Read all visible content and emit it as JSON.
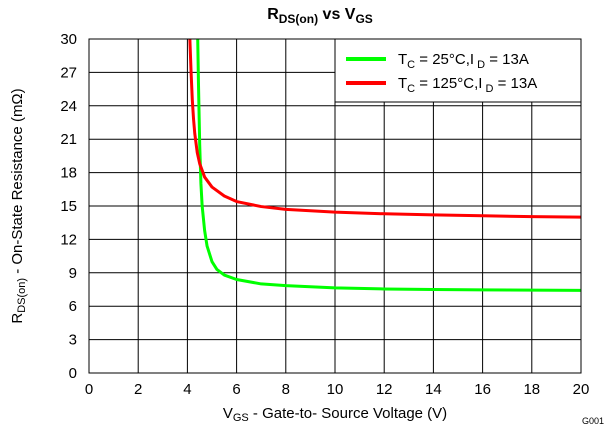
{
  "chart_data": {
    "type": "line",
    "title": {
      "main": "R",
      "main_sub": "DS(on)",
      "middle": " vs V",
      "middle_sub": "GS"
    },
    "xlabel": {
      "prefix": "V",
      "prefix_sub": "GS",
      "text": " - Gate-to- Source Voltage (V)"
    },
    "ylabel": {
      "prefix": "R",
      "prefix_sub": "DS(on)",
      "text": " - On-State Resistance  (mΩ)"
    },
    "xlim": [
      0,
      20
    ],
    "ylim": [
      0,
      30
    ],
    "x_ticks": [
      0,
      2,
      4,
      6,
      8,
      10,
      12,
      14,
      16,
      18,
      20
    ],
    "y_ticks": [
      0,
      3,
      6,
      9,
      12,
      15,
      18,
      21,
      24,
      27,
      30
    ],
    "grid": true,
    "legend_position": "top-right",
    "series": [
      {
        "label": {
          "a": "T",
          "a_sub": "C",
          "b": " = 25°C,I",
          "b_sub": " D",
          "c": " = 13A"
        },
        "color": "#00ff00",
        "x": [
          4.42,
          4.45,
          4.5,
          4.55,
          4.6,
          4.7,
          4.8,
          5.0,
          5.2,
          5.5,
          6.0,
          7.0,
          8.0,
          10.0,
          12.0,
          14.0,
          16.0,
          18.0,
          20.0
        ],
        "y": [
          30.0,
          26.0,
          20.5,
          17.0,
          15.0,
          12.8,
          11.4,
          10.0,
          9.3,
          8.8,
          8.4,
          8.0,
          7.85,
          7.65,
          7.55,
          7.5,
          7.47,
          7.44,
          7.42
        ]
      },
      {
        "label": {
          "a": "T",
          "a_sub": "C",
          "b": " = 125°C,I",
          "b_sub": " D",
          "c": " = 13A"
        },
        "color": "#ff0000",
        "x": [
          4.1,
          4.15,
          4.2,
          4.25,
          4.3,
          4.4,
          4.5,
          4.7,
          5.0,
          5.5,
          6.0,
          7.0,
          8.0,
          10.0,
          12.0,
          14.0,
          16.0,
          18.0,
          20.0
        ],
        "y": [
          30.0,
          27.0,
          24.5,
          22.8,
          21.5,
          19.8,
          18.8,
          17.6,
          16.7,
          15.9,
          15.4,
          14.95,
          14.7,
          14.45,
          14.3,
          14.2,
          14.12,
          14.05,
          14.0
        ]
      }
    ],
    "annotation": "G001"
  }
}
